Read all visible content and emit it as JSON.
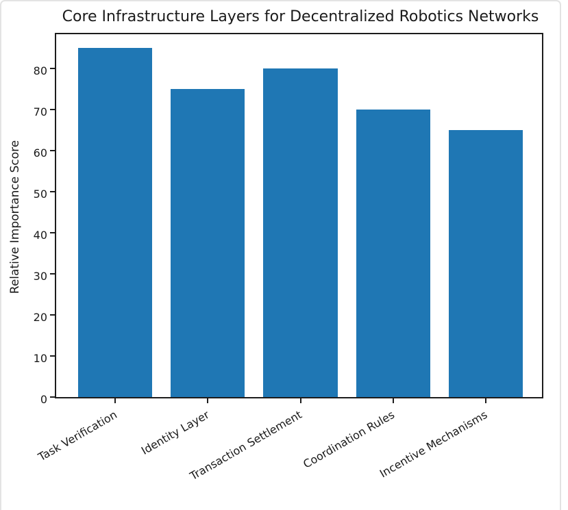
{
  "chart_data": {
    "type": "bar",
    "title": "Core Infrastructure Layers for Decentralized Robotics Networks",
    "ylabel": "Relative Importance Score",
    "xlabel": "",
    "categories": [
      "Task Verification",
      "Identity Layer",
      "Transaction Settlement",
      "Coordination Rules",
      "Incentive Mechanisms"
    ],
    "values": [
      85,
      75,
      80,
      70,
      65
    ],
    "yticks": [
      0,
      10,
      20,
      30,
      40,
      50,
      60,
      70,
      80
    ],
    "ylim": [
      0,
      89
    ],
    "grid": false,
    "legend_position": "none",
    "x_label_rotation_deg": 30,
    "colors": {
      "bar": "#1f77b4",
      "axis": "#1c1c1c",
      "text": "#1a1a1a",
      "frame": "#e3e3e3",
      "background": "#ffffff"
    }
  }
}
